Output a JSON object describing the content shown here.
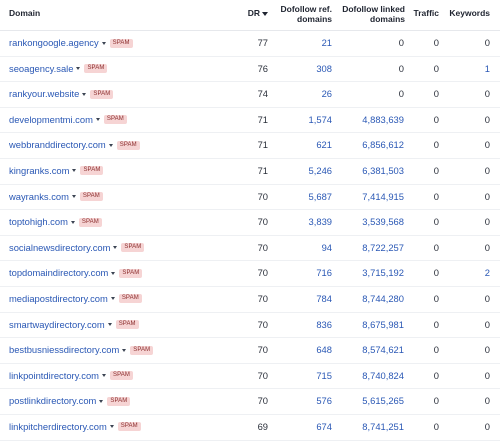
{
  "table": {
    "headers": {
      "domain": "Domain",
      "dr": "DR",
      "dofollow_ref_domains": "Dofollow ref. domains",
      "dofollow_linked_domains": "Dofollow linked domains",
      "traffic": "Traffic",
      "keywords": "Keywords"
    },
    "spam_label": "SPAM",
    "rows": [
      {
        "domain": "rankongoogle.agency",
        "dr": "77",
        "ref": "21",
        "linked": "0",
        "traffic": "0",
        "keywords": "0"
      },
      {
        "domain": "seoagency.sale",
        "dr": "76",
        "ref": "308",
        "linked": "0",
        "traffic": "0",
        "keywords": "1"
      },
      {
        "domain": "rankyour.website",
        "dr": "74",
        "ref": "26",
        "linked": "0",
        "traffic": "0",
        "keywords": "0"
      },
      {
        "domain": "developmentmi.com",
        "dr": "71",
        "ref": "1,574",
        "linked": "4,883,639",
        "traffic": "0",
        "keywords": "0"
      },
      {
        "domain": "webbranddirectory.com",
        "dr": "71",
        "ref": "621",
        "linked": "6,856,612",
        "traffic": "0",
        "keywords": "0"
      },
      {
        "domain": "kingranks.com",
        "dr": "71",
        "ref": "5,246",
        "linked": "6,381,503",
        "traffic": "0",
        "keywords": "0"
      },
      {
        "domain": "wayranks.com",
        "dr": "70",
        "ref": "5,687",
        "linked": "7,414,915",
        "traffic": "0",
        "keywords": "0"
      },
      {
        "domain": "toptohigh.com",
        "dr": "70",
        "ref": "3,839",
        "linked": "3,539,568",
        "traffic": "0",
        "keywords": "0"
      },
      {
        "domain": "socialnewsdirectory.com",
        "dr": "70",
        "ref": "94",
        "linked": "8,722,257",
        "traffic": "0",
        "keywords": "0"
      },
      {
        "domain": "topdomaindirectory.com",
        "dr": "70",
        "ref": "716",
        "linked": "3,715,192",
        "traffic": "0",
        "keywords": "2"
      },
      {
        "domain": "mediapostdirectory.com",
        "dr": "70",
        "ref": "784",
        "linked": "8,744,280",
        "traffic": "0",
        "keywords": "0"
      },
      {
        "domain": "smartwaydirectory.com",
        "dr": "70",
        "ref": "836",
        "linked": "8,675,981",
        "traffic": "0",
        "keywords": "0"
      },
      {
        "domain": "bestbusniessdirectory.com",
        "dr": "70",
        "ref": "648",
        "linked": "8,574,621",
        "traffic": "0",
        "keywords": "0"
      },
      {
        "domain": "linkpointdirectory.com",
        "dr": "70",
        "ref": "715",
        "linked": "8,740,824",
        "traffic": "0",
        "keywords": "0"
      },
      {
        "domain": "postlinkdirectory.com",
        "dr": "70",
        "ref": "576",
        "linked": "5,615,265",
        "traffic": "0",
        "keywords": "0"
      },
      {
        "domain": "linkpitcherdirectory.com",
        "dr": "69",
        "ref": "674",
        "linked": "8,741,251",
        "traffic": "0",
        "keywords": "0"
      }
    ]
  }
}
